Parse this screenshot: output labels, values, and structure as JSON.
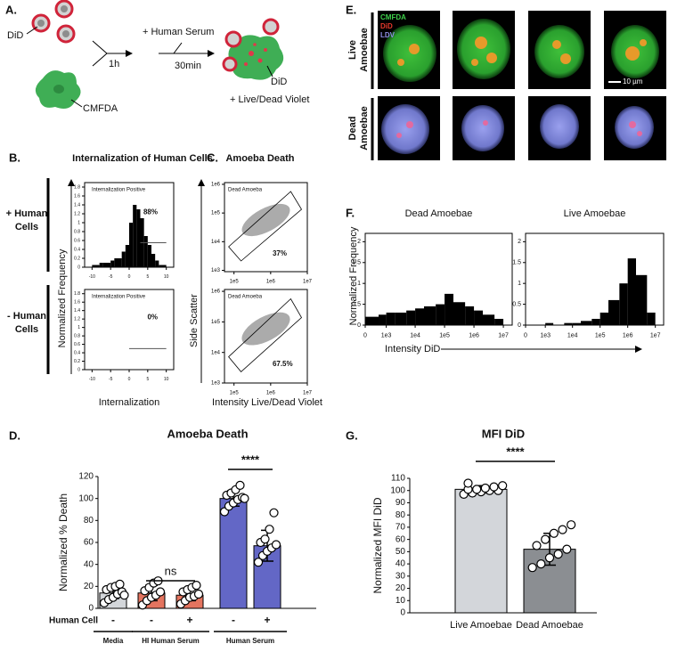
{
  "panel_a": {
    "label": "A.",
    "did_label": "DiD",
    "step1_time": "1h",
    "serum_label": "+ Human Serum",
    "step2_time": "30min",
    "cmfda_label": "CMFDA",
    "did_label_2": "DiD",
    "stain_label": "+ Live/Dead Violet"
  },
  "panel_b": {
    "label": "B.",
    "title": "Internalization of Human Cells",
    "row_labels": [
      [
        "+ Human",
        "Cells"
      ],
      [
        "- Human",
        "Cells"
      ]
    ],
    "y_label": "Normalized Frequency",
    "x_label": "Internalization"
  },
  "panel_c": {
    "label": "C.",
    "title": "Amoeba Death",
    "y_label": "Side Scatter",
    "x_label": "Intensity Live/Dead Violet"
  },
  "panel_d": {
    "label": "D."
  },
  "panel_e": {
    "label": "E.",
    "rows": [
      [
        "Live",
        "Amoebae"
      ],
      [
        "Dead",
        "Amoebae"
      ]
    ],
    "channels": [
      {
        "name": "CMFDA",
        "color": "#3ecf4a"
      },
      {
        "name": "DiD",
        "color": "#e5392c"
      },
      {
        "name": "LDV",
        "color": "#8f8fe6"
      }
    ],
    "scale_bar": "10 µm"
  },
  "panel_f": {
    "label": "F.",
    "y_label": "Normalized Frequency",
    "x_label": "Intensity DiD"
  },
  "panel_g": {
    "label": "G."
  },
  "chart_data": [
    {
      "type": "histogram",
      "xlim": [
        -12,
        12
      ],
      "xticks": [
        -10,
        -5,
        0,
        5,
        10
      ],
      "ylim": [
        0,
        1.9
      ],
      "yticks": [
        0,
        0.2,
        0.4,
        0.6,
        0.8,
        1,
        1.2,
        1.4,
        1.6,
        1.8
      ],
      "bins": [
        -10,
        -9,
        -8,
        -7,
        -6,
        -5,
        -4,
        -3,
        -2,
        -1,
        0,
        1,
        2,
        3,
        4,
        5,
        6,
        7,
        8,
        9,
        10
      ],
      "counts": [
        0.05,
        0.05,
        0.1,
        0.1,
        0.1,
        0.15,
        0.2,
        0.2,
        0.35,
        0.5,
        1.0,
        1.4,
        1.3,
        1.1,
        0.7,
        0.5,
        0.3,
        0.15,
        0.05,
        0.05
      ],
      "color": "#000000",
      "annotation": "Internalization Positive",
      "gate": {
        "xmin": 3,
        "xmax": 10,
        "y": 0.55
      },
      "gate_label": "88%"
    },
    {
      "type": "histogram",
      "xlim": [
        -12,
        12
      ],
      "xticks": [
        -10,
        -5,
        0,
        5,
        10
      ],
      "ylim": [
        0,
        1.9
      ],
      "yticks": [
        0,
        0.2,
        0.4,
        0.6,
        0.8,
        1,
        1.2,
        1.4,
        1.6,
        1.8
      ],
      "color": "#000000",
      "annotation": "Internalization Positive",
      "gate": {
        "xmin": 0,
        "xmax": 10,
        "y": 0.5
      },
      "gate_label": "0%"
    },
    {
      "type": "flow",
      "xscale": "log",
      "yscale": "log",
      "xlim": [
        55000,
        10000000
      ],
      "xticks": [
        {
          "value": 100000,
          "label": "1e5"
        },
        {
          "value": 1000000,
          "label": "1e6"
        },
        {
          "value": 10000000,
          "label": "1e7"
        }
      ],
      "ylim": [
        900,
        1150000
      ],
      "yticks": [
        {
          "value": 1000,
          "label": "1e3"
        },
        {
          "value": 10000,
          "label": "1e4"
        },
        {
          "value": 100000,
          "label": "1e5"
        },
        {
          "value": 1000000,
          "label": "1e6"
        }
      ],
      "annotation": "Dead Amoeba",
      "gate_label": "37%"
    },
    {
      "type": "flow",
      "xscale": "log",
      "yscale": "log",
      "xlim": [
        55000,
        10000000
      ],
      "xticks": [
        {
          "value": 100000,
          "label": "1e5"
        },
        {
          "value": 1000000,
          "label": "1e6"
        },
        {
          "value": 10000000,
          "label": "1e7"
        }
      ],
      "ylim": [
        1000,
        1150000
      ],
      "yticks": [
        {
          "value": 1000,
          "label": "1e3"
        },
        {
          "value": 10000,
          "label": "1e4"
        },
        {
          "value": 100000,
          "label": "1e5"
        },
        {
          "value": 1000000,
          "label": "1e6"
        }
      ],
      "annotation": "Dead Amoeba",
      "gate_label": "67.5%"
    },
    {
      "type": "histogram",
      "title": "Dead Amoebae",
      "xscale": "asinh",
      "xlim": [
        0,
        20000000
      ],
      "xticks": [
        0,
        {
          "value": 1000,
          "label": "1e3"
        },
        {
          "value": 10000,
          "label": "1e4"
        },
        {
          "value": 100000,
          "label": "1e5"
        },
        {
          "value": 1000000,
          "label": "1e6"
        },
        {
          "value": 10000000,
          "label": "1e7"
        }
      ],
      "ylim": [
        0,
        2.2
      ],
      "yticks": [
        0,
        0.5,
        1,
        1.5,
        2
      ],
      "bins": [
        0,
        500,
        1000,
        2000,
        5000,
        10000,
        20000,
        50000,
        100000,
        200000,
        500000,
        1000000,
        2000000,
        5000000,
        10000000
      ],
      "counts": [
        0.2,
        0.25,
        0.3,
        0.3,
        0.35,
        0.4,
        0.45,
        0.5,
        0.75,
        0.55,
        0.45,
        0.35,
        0.25,
        0.15
      ],
      "color": "#000000"
    },
    {
      "type": "histogram",
      "title": "Live Amoebae",
      "xscale": "asinh",
      "xlim": [
        0,
        20000000
      ],
      "xticks": [
        0,
        {
          "value": 1000,
          "label": "1e3"
        },
        {
          "value": 10000,
          "label": "1e4"
        },
        {
          "value": 100000,
          "label": "1e5"
        },
        {
          "value": 1000000,
          "label": "1e6"
        },
        {
          "value": 10000000,
          "label": "1e7"
        }
      ],
      "ylim": [
        0,
        2.2
      ],
      "yticks": [
        0,
        0.5,
        1,
        1.5,
        2
      ],
      "bins": [
        0,
        500,
        1000,
        2000,
        5000,
        10000,
        20000,
        50000,
        100000,
        200000,
        500000,
        1000000,
        2000000,
        5000000,
        10000000
      ],
      "counts": [
        0,
        0,
        0.05,
        0,
        0.05,
        0.05,
        0.1,
        0.15,
        0.3,
        0.6,
        1.0,
        1.6,
        1.2,
        0.3
      ],
      "color": "#000000"
    },
    {
      "type": "bar",
      "title": "Amoeba Death",
      "y_label": "Normalized % Death",
      "row_label": "Human Cell",
      "categories": [
        "-",
        "-",
        "+",
        "-",
        "+"
      ],
      "groups": [
        "Media",
        "HI Human Serum",
        "Human Serum"
      ],
      "values": [
        14,
        14,
        12,
        100,
        57
      ],
      "errors": [
        5,
        7,
        5,
        7,
        14
      ],
      "colors": [
        "#d3d6da",
        "#e4745f",
        "#e4745f",
        "#6367c6",
        "#6367c6"
      ],
      "points": [
        [
          5,
          8,
          10,
          13,
          15,
          17,
          19,
          20,
          22,
          12
        ],
        [
          3,
          7,
          10,
          12,
          15,
          16,
          19,
          23,
          25
        ],
        [
          4,
          7,
          10,
          11,
          13,
          15,
          17,
          19,
          21
        ],
        [
          88,
          93,
          96,
          99,
          101,
          103,
          105,
          108,
          112,
          100
        ],
        [
          42,
          48,
          52,
          55,
          58,
          60,
          63,
          72,
          87
        ]
      ],
      "annotations": [
        "ns",
        "****"
      ],
      "ylim": [
        0,
        120
      ],
      "yticks": [
        0,
        20,
        40,
        60,
        80,
        100,
        120
      ]
    },
    {
      "type": "bar",
      "title": "MFI DiD",
      "y_label": "Normalized MFI DiD",
      "categories": [
        "Live Amoebae",
        "Dead Amoebae"
      ],
      "values": [
        101,
        52
      ],
      "errors": [
        3,
        13
      ],
      "colors": [
        "#d3d6da",
        "#8b8e92"
      ],
      "points": [
        [
          97,
          98,
          99,
          100,
          100,
          101,
          101,
          102,
          103,
          104,
          106
        ],
        [
          37,
          40,
          45,
          48,
          52,
          55,
          60,
          65,
          68,
          72
        ]
      ],
      "annotations": [
        "****"
      ],
      "ylim": [
        0,
        110
      ],
      "yticks": [
        0,
        10,
        20,
        30,
        40,
        50,
        60,
        70,
        80,
        90,
        100,
        110
      ]
    }
  ]
}
